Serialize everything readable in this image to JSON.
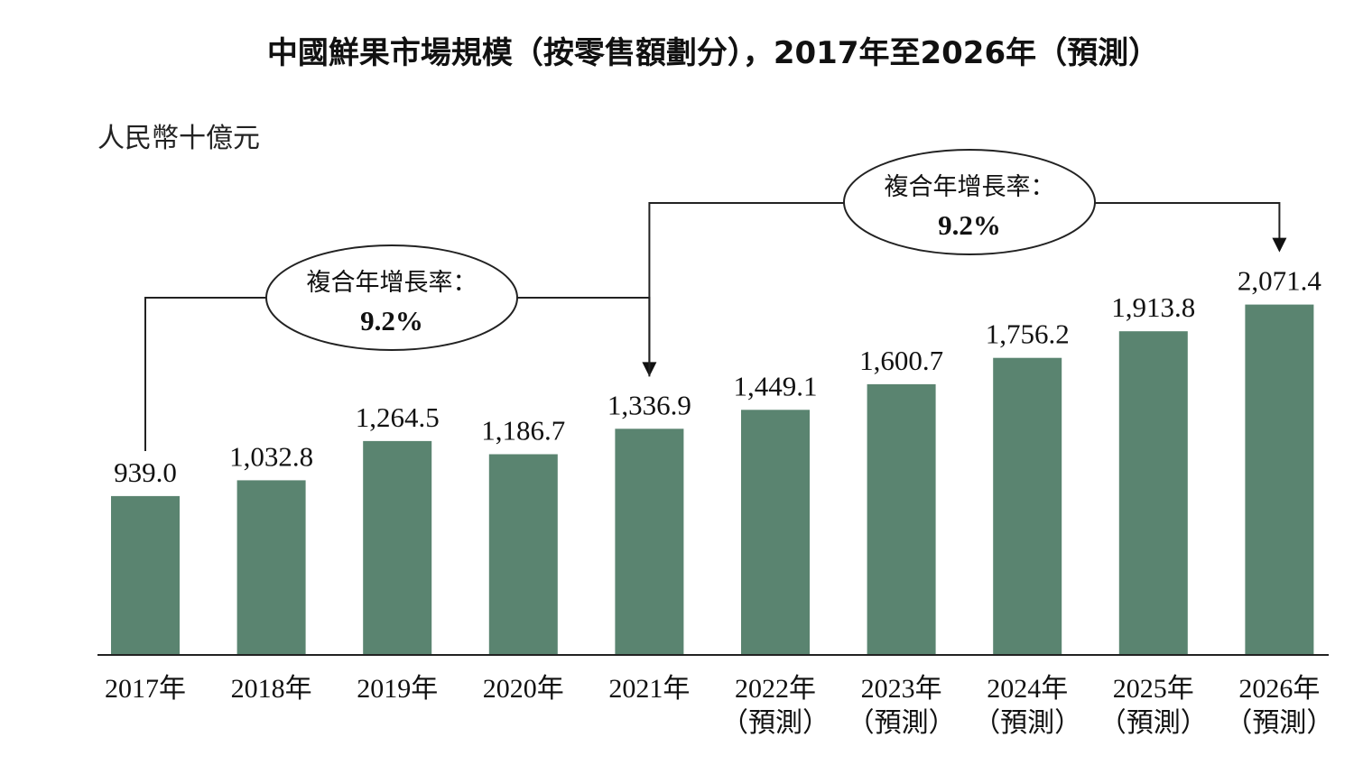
{
  "chart_data": {
    "type": "bar",
    "title": "中國鮮果市場規模（按零售額劃分），2017年至2026年（預測）",
    "ylabel": "人民幣十億元",
    "xlabel": "",
    "ylim": [
      0,
      2500
    ],
    "grid": false,
    "legend": "none",
    "bar_color": "#5a8470",
    "categories": [
      [
        "2017年"
      ],
      [
        "2018年"
      ],
      [
        "2019年"
      ],
      [
        "2020年"
      ],
      [
        "2021年"
      ],
      [
        "2022年",
        "（預測）"
      ],
      [
        "2023年",
        "（預測）"
      ],
      [
        "2024年",
        "（預測）"
      ],
      [
        "2025年",
        "（預測）"
      ],
      [
        "2026年",
        "（預測）"
      ]
    ],
    "values": [
      939.0,
      1032.8,
      1264.5,
      1186.7,
      1336.9,
      1449.1,
      1600.7,
      1756.2,
      1913.8,
      2071.4
    ],
    "value_labels": [
      "939.0",
      "1,032.8",
      "1,264.5",
      "1,186.7",
      "1,336.9",
      "1,449.1",
      "1,600.7",
      "1,756.2",
      "1,913.8",
      "2,071.4"
    ],
    "annotations": [
      {
        "label": "複合年增長率：",
        "value": "9.2%",
        "from_index": 0,
        "to_index": 4
      },
      {
        "label": "複合年增長率：",
        "value": "9.2%",
        "from_index": 4,
        "to_index": 9
      }
    ]
  }
}
